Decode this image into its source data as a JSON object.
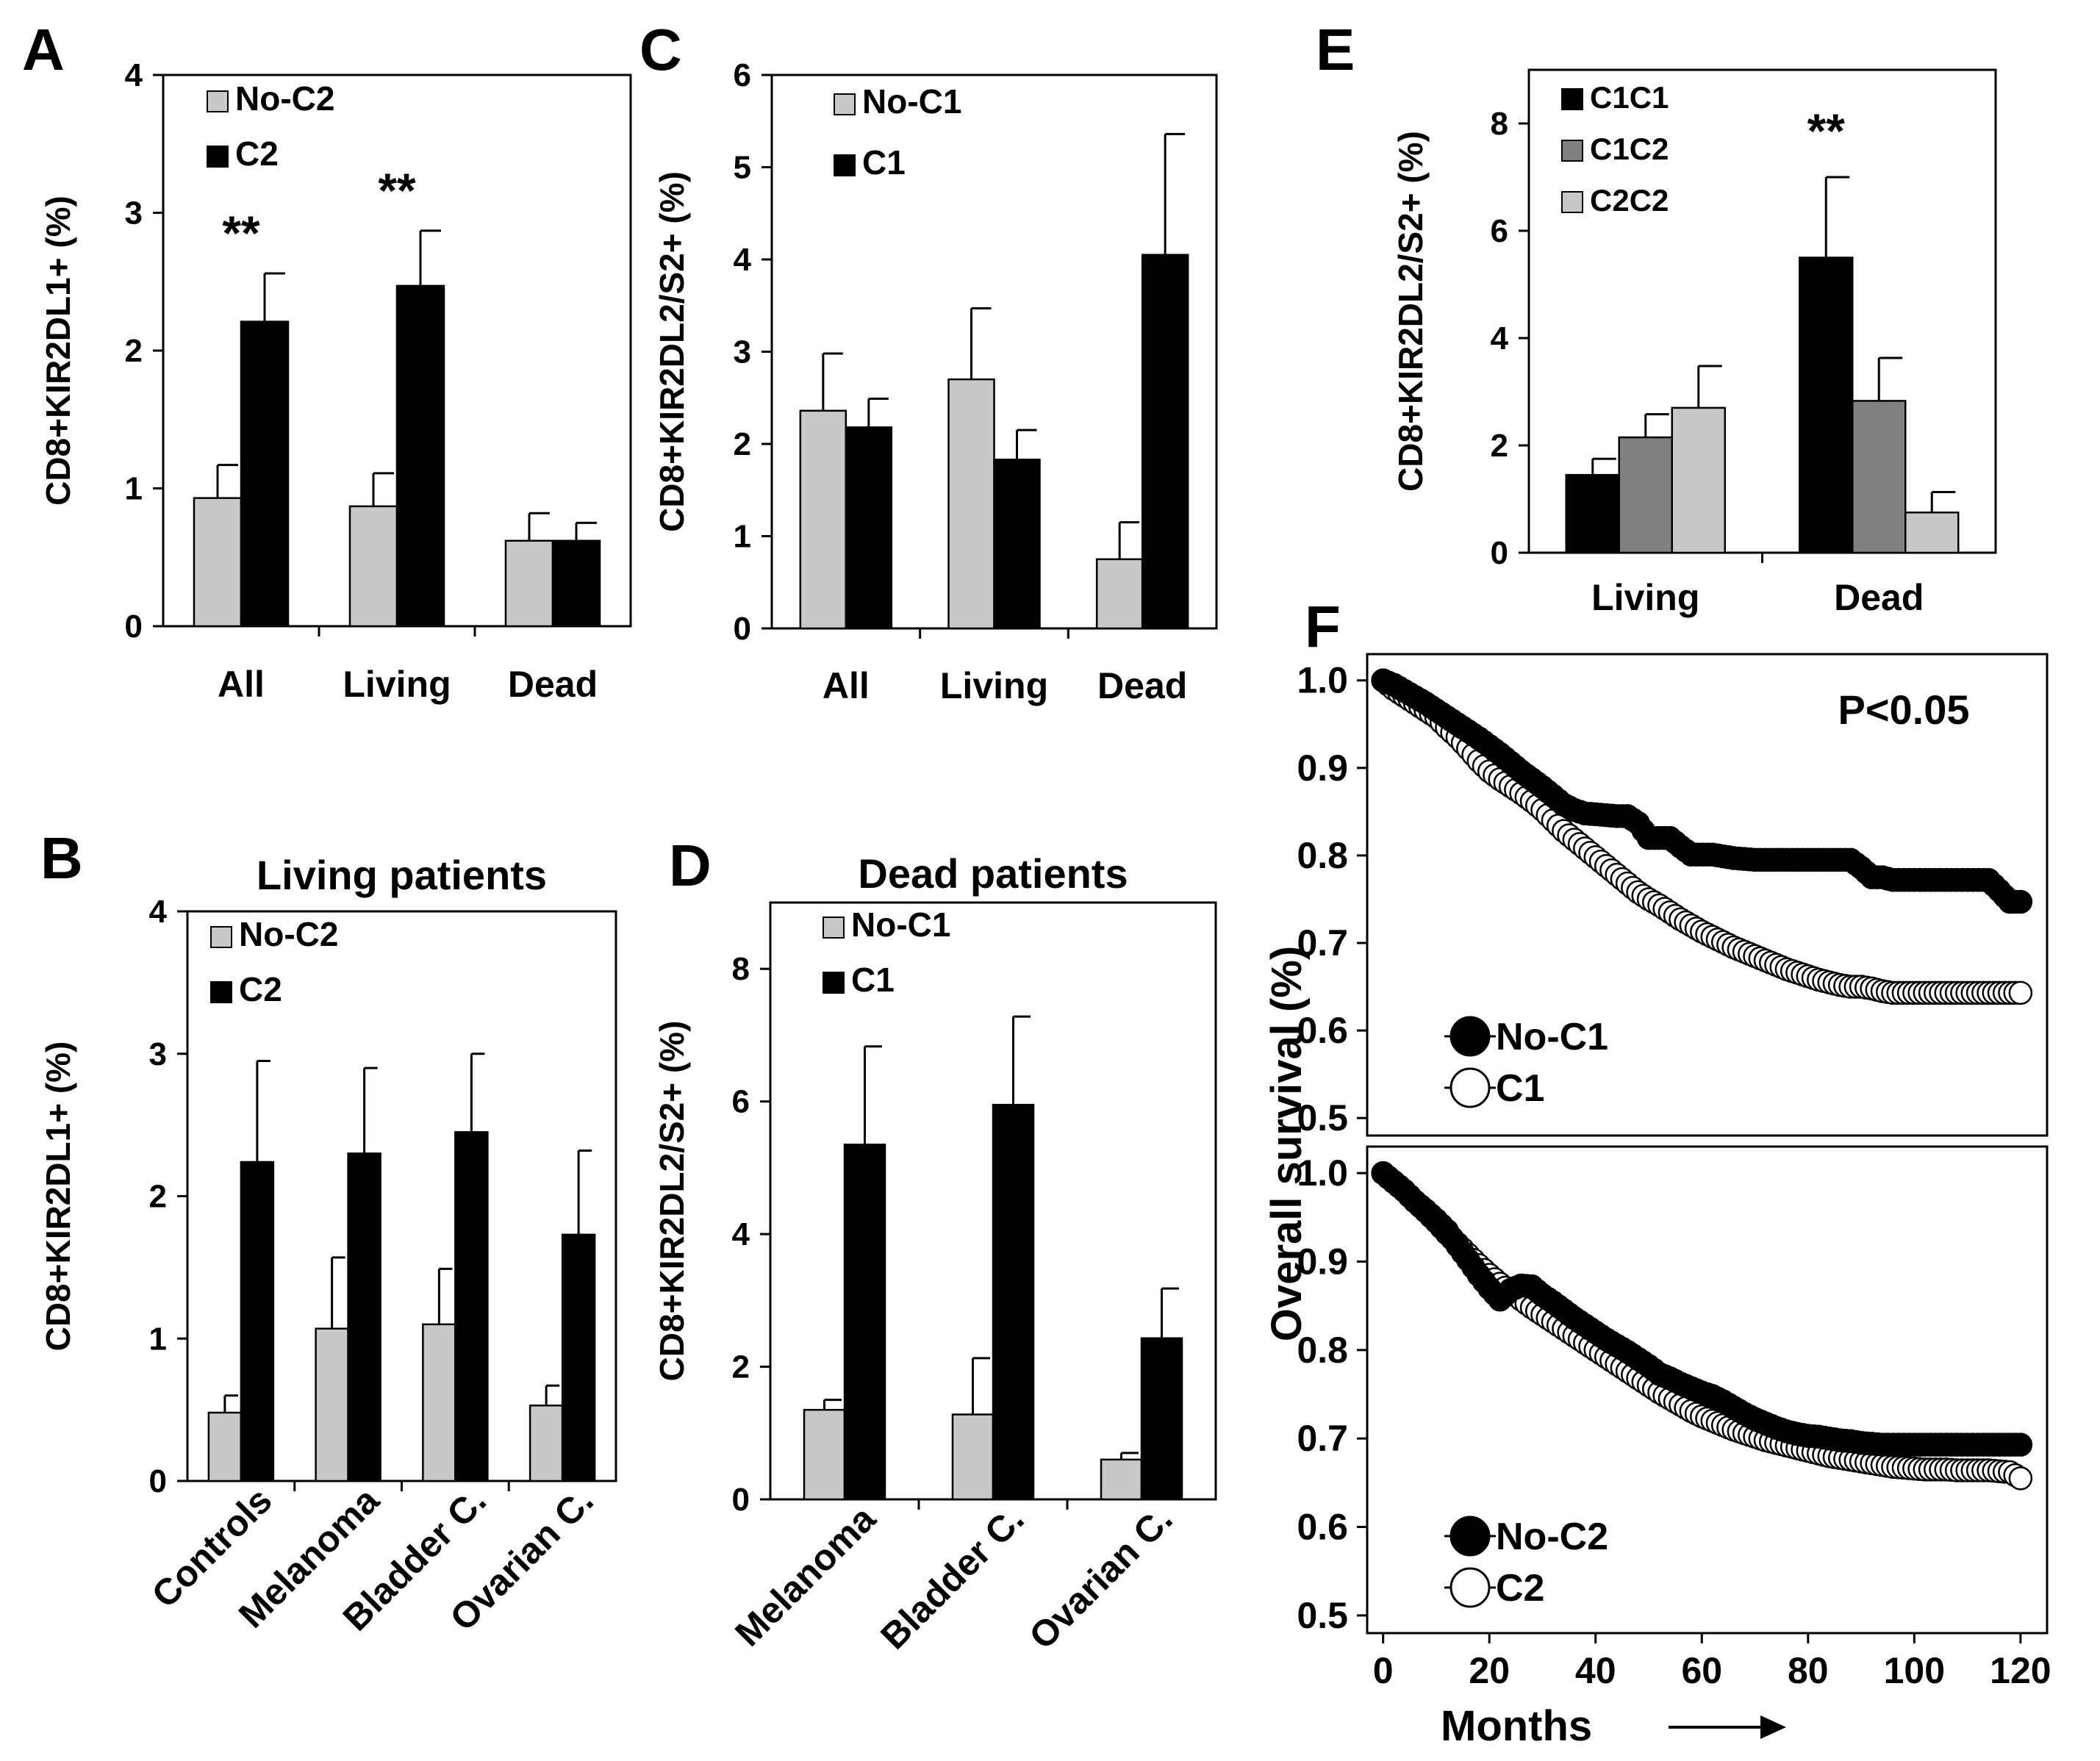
{
  "chart_data": [
    {
      "panel": "A",
      "type": "bar",
      "categories": [
        "All",
        "Living",
        "Dead"
      ],
      "series": [
        {
          "name": "No-C2",
          "color": "#c8c8c8",
          "values": [
            0.93,
            0.87,
            0.62
          ],
          "errors": [
            0.24,
            0.24,
            0.2
          ]
        },
        {
          "name": "C2",
          "color": "#000000",
          "values": [
            2.21,
            2.47,
            0.62
          ],
          "errors": [
            0.35,
            0.4,
            0.13
          ]
        }
      ],
      "annotations": [
        "**",
        "**",
        ""
      ],
      "ylabel": "CD8+KIR2DL1+ (%)",
      "ylim": [
        0,
        4
      ],
      "yticks": [
        "0",
        "1",
        "2",
        "3",
        "4"
      ],
      "xlabel_rotated": false
    },
    {
      "panel": "B",
      "type": "bar",
      "title": "Living patients",
      "categories": [
        "Controls",
        "Melanoma",
        "Bladder C.",
        "Ovarian C."
      ],
      "series": [
        {
          "name": "No-C2",
          "color": "#c8c8c8",
          "values": [
            0.48,
            1.07,
            1.1,
            0.53
          ],
          "errors": [
            0.12,
            0.5,
            0.39,
            0.14
          ]
        },
        {
          "name": "C2",
          "color": "#000000",
          "values": [
            2.24,
            2.3,
            2.45,
            1.73
          ],
          "errors": [
            0.71,
            0.6,
            0.55,
            0.59
          ]
        }
      ],
      "ylabel": "CD8+KIR2DL1+ (%)",
      "ylim": [
        0,
        4
      ],
      "yticks": [
        "0",
        "1",
        "2",
        "3",
        "4"
      ],
      "xlabel_rotated": true
    },
    {
      "panel": "C",
      "type": "bar",
      "categories": [
        "All",
        "Living",
        "Dead"
      ],
      "series": [
        {
          "name": "No-C1",
          "color": "#c8c8c8",
          "values": [
            2.36,
            2.7,
            0.75
          ],
          "errors": [
            0.62,
            0.77,
            0.4
          ]
        },
        {
          "name": "C1",
          "color": "#000000",
          "values": [
            2.18,
            1.83,
            4.05
          ],
          "errors": [
            0.31,
            0.32,
            1.31
          ]
        }
      ],
      "ylabel": "CD8+KIR2DL2/S2+ (%)",
      "ylim": [
        0,
        6
      ],
      "yticks": [
        "0",
        "1",
        "2",
        "3",
        "4",
        "5",
        "6"
      ],
      "xlabel_rotated": false
    },
    {
      "panel": "D",
      "type": "bar",
      "title": "Dead patients",
      "categories": [
        "Melanoma",
        "Bladder C.",
        "Ovarian C."
      ],
      "series": [
        {
          "name": "No-C1",
          "color": "#c8c8c8",
          "values": [
            1.35,
            1.28,
            0.6
          ],
          "errors": [
            0.15,
            0.85,
            0.1
          ]
        },
        {
          "name": "C1",
          "color": "#000000",
          "values": [
            5.35,
            5.95,
            2.43
          ],
          "errors": [
            1.48,
            1.33,
            0.75
          ]
        }
      ],
      "ylabel": "CD8+KIR2DL2/S2+ (%)",
      "ylim": [
        0,
        9
      ],
      "yticks": [
        "0",
        "2",
        "4",
        "6",
        "8"
      ],
      "xlabel_rotated": true
    },
    {
      "panel": "E",
      "type": "bar",
      "categories": [
        "Living",
        "Dead"
      ],
      "series": [
        {
          "name": "C1C1",
          "color": "#000000",
          "values": [
            1.45,
            5.5
          ],
          "errors": [
            0.3,
            1.5
          ]
        },
        {
          "name": "C1C2",
          "color": "#808080",
          "values": [
            2.15,
            2.83
          ],
          "errors": [
            0.43,
            0.8
          ]
        },
        {
          "name": "C2C2",
          "color": "#c8c8c8",
          "values": [
            2.7,
            0.75
          ],
          "errors": [
            0.78,
            0.38
          ]
        }
      ],
      "annotations": [
        "",
        "**"
      ],
      "ylabel": "CD8+KIR2DL2/S2+ (%)",
      "ylim": [
        0,
        9
      ],
      "yticks": [
        "0",
        "2",
        "4",
        "6",
        "8"
      ],
      "xlabel_rotated": false
    },
    {
      "panel": "F",
      "type": "line",
      "subtype": "kaplan-meier",
      "xlabel": "Months",
      "ylabel": "Overall survival (%)",
      "xlim": [
        -3,
        125
      ],
      "xticks": [
        "0",
        "20",
        "40",
        "60",
        "80",
        "100",
        "120"
      ],
      "ylim": [
        0.48,
        1.03
      ],
      "yticks": [
        "0.5",
        "0.6",
        "0.7",
        "0.8",
        "0.9",
        "1.0"
      ],
      "annotation": "P<0.05",
      "subplots": [
        {
          "series": [
            {
              "name": "No-C1",
              "marker": "filled-circle",
              "x": [
                0,
                2,
                4,
                6,
                8,
                10,
                12,
                14,
                16,
                18,
                20,
                22,
                24,
                26,
                28,
                30,
                32,
                34,
                36,
                38,
                40,
                42,
                44,
                46,
                48,
                50,
                52,
                54,
                56,
                58,
                60,
                62,
                64,
                66,
                68,
                70,
                72,
                74,
                76,
                78,
                80,
                82,
                84,
                86,
                88,
                90,
                92,
                94,
                96,
                98,
                100,
                102,
                104,
                106,
                108,
                110,
                112,
                114,
                116,
                118,
                120
              ],
              "y": [
                1.0,
                0.995,
                0.988,
                0.981,
                0.974,
                0.966,
                0.958,
                0.95,
                0.942,
                0.934,
                0.925,
                0.916,
                0.906,
                0.896,
                0.887,
                0.878,
                0.868,
                0.858,
                0.852,
                0.848,
                0.847,
                0.846,
                0.845,
                0.845,
                0.837,
                0.82,
                0.82,
                0.82,
                0.81,
                0.801,
                0.801,
                0.801,
                0.799,
                0.797,
                0.796,
                0.795,
                0.795,
                0.795,
                0.795,
                0.795,
                0.795,
                0.795,
                0.795,
                0.795,
                0.795,
                0.786,
                0.775,
                0.775,
                0.772,
                0.772,
                0.772,
                0.772,
                0.772,
                0.772,
                0.772,
                0.772,
                0.772,
                0.772,
                0.76,
                0.747,
                0.747
              ]
            },
            {
              "name": "C1",
              "marker": "open-circle",
              "x": [
                0,
                2,
                4,
                6,
                8,
                10,
                12,
                14,
                16,
                18,
                20,
                22,
                24,
                26,
                28,
                30,
                32,
                34,
                36,
                38,
                40,
                42,
                44,
                46,
                48,
                50,
                52,
                54,
                56,
                58,
                60,
                62,
                64,
                66,
                68,
                70,
                72,
                74,
                76,
                78,
                80,
                82,
                84,
                86,
                88,
                90,
                92,
                94,
                96,
                98,
                100,
                102,
                104,
                106,
                108,
                110,
                112,
                114,
                116,
                118,
                120
              ],
              "y": [
                1.0,
                0.99,
                0.982,
                0.974,
                0.966,
                0.958,
                0.946,
                0.935,
                0.922,
                0.908,
                0.896,
                0.887,
                0.879,
                0.871,
                0.862,
                0.852,
                0.84,
                0.828,
                0.818,
                0.808,
                0.798,
                0.788,
                0.778,
                0.768,
                0.758,
                0.75,
                0.743,
                0.735,
                0.727,
                0.72,
                0.713,
                0.707,
                0.701,
                0.695,
                0.69,
                0.685,
                0.68,
                0.675,
                0.67,
                0.666,
                0.662,
                0.658,
                0.655,
                0.652,
                0.65,
                0.65,
                0.648,
                0.645,
                0.643,
                0.643,
                0.643,
                0.643,
                0.643,
                0.643,
                0.643,
                0.643,
                0.643,
                0.643,
                0.643,
                0.643,
                0.643
              ]
            }
          ]
        },
        {
          "series": [
            {
              "name": "No-C2",
              "marker": "filled-circle",
              "x": [
                0,
                2,
                4,
                6,
                8,
                10,
                12,
                14,
                16,
                18,
                20,
                22,
                24,
                26,
                28,
                30,
                32,
                34,
                36,
                38,
                40,
                42,
                44,
                46,
                48,
                50,
                52,
                54,
                56,
                58,
                60,
                62,
                64,
                66,
                68,
                70,
                72,
                74,
                76,
                78,
                80,
                82,
                84,
                86,
                88,
                90,
                92,
                94,
                96,
                98,
                100,
                102,
                104,
                106,
                108,
                110,
                112,
                114,
                116,
                118,
                120
              ],
              "y": [
                1.0,
                0.99,
                0.98,
                0.968,
                0.958,
                0.947,
                0.935,
                0.918,
                0.902,
                0.885,
                0.87,
                0.857,
                0.868,
                0.873,
                0.872,
                0.862,
                0.854,
                0.845,
                0.836,
                0.828,
                0.82,
                0.812,
                0.805,
                0.798,
                0.79,
                0.782,
                0.773,
                0.768,
                0.762,
                0.757,
                0.752,
                0.748,
                0.742,
                0.735,
                0.728,
                0.722,
                0.717,
                0.712,
                0.708,
                0.705,
                0.703,
                0.702,
                0.7,
                0.698,
                0.697,
                0.695,
                0.694,
                0.693,
                0.693,
                0.693,
                0.693,
                0.693,
                0.693,
                0.693,
                0.693,
                0.693,
                0.693,
                0.693,
                0.693,
                0.693,
                0.693
              ]
            },
            {
              "name": "C2",
              "marker": "open-circle",
              "x": [
                0,
                2,
                4,
                6,
                8,
                10,
                12,
                14,
                16,
                18,
                20,
                22,
                24,
                26,
                28,
                30,
                32,
                34,
                36,
                38,
                40,
                42,
                44,
                46,
                48,
                50,
                52,
                54,
                56,
                58,
                60,
                62,
                64,
                66,
                68,
                70,
                72,
                74,
                76,
                78,
                80,
                82,
                84,
                86,
                88,
                90,
                92,
                94,
                96,
                98,
                100,
                102,
                104,
                106,
                108,
                110,
                112,
                114,
                116,
                118,
                120
              ],
              "y": [
                1.0,
                0.99,
                0.98,
                0.968,
                0.957,
                0.945,
                0.932,
                0.92,
                0.908,
                0.896,
                0.885,
                0.875,
                0.866,
                0.857,
                0.848,
                0.84,
                0.832,
                0.824,
                0.816,
                0.808,
                0.8,
                0.792,
                0.784,
                0.776,
                0.768,
                0.76,
                0.752,
                0.745,
                0.738,
                0.731,
                0.725,
                0.72,
                0.715,
                0.71,
                0.706,
                0.702,
                0.698,
                0.695,
                0.692,
                0.689,
                0.686,
                0.683,
                0.68,
                0.678,
                0.676,
                0.674,
                0.672,
                0.67,
                0.668,
                0.667,
                0.666,
                0.665,
                0.665,
                0.665,
                0.664,
                0.664,
                0.664,
                0.664,
                0.663,
                0.662,
                0.655
              ]
            }
          ]
        }
      ]
    }
  ]
}
